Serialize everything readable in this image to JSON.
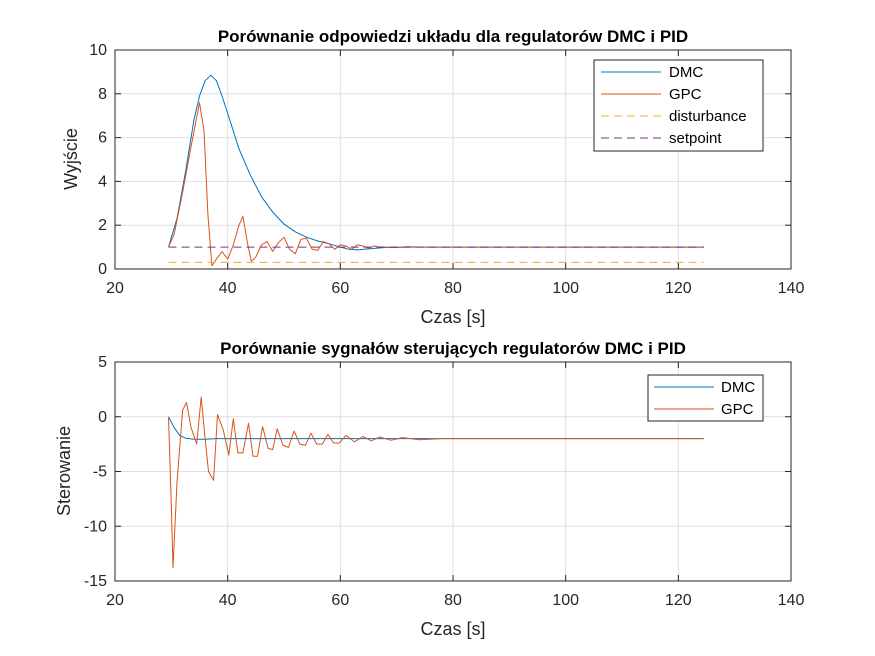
{
  "chart_data": [
    {
      "type": "line",
      "title": "Porównanie odpowiedzi układu dla regulatorów DMC i PID",
      "xlabel": "Czas [s]",
      "ylabel": "Wyjście",
      "xlim": [
        20,
        140
      ],
      "ylim": [
        0,
        10
      ],
      "xticks": [
        20,
        40,
        60,
        80,
        100,
        120,
        140
      ],
      "yticks": [
        0,
        2,
        4,
        6,
        8,
        10
      ],
      "xtick_labels": [
        "20",
        "40",
        "60",
        "80",
        "100",
        "120",
        "140"
      ],
      "ytick_labels": [
        "0",
        "2",
        "4",
        "6",
        "8",
        "10"
      ],
      "grid": true,
      "legend_position": "top-right",
      "series": [
        {
          "name": "DMC",
          "color": "#0072bd",
          "style": "solid",
          "x": [
            29.5,
            31,
            32.5,
            34,
            35,
            36,
            37,
            38,
            39,
            40,
            41,
            42,
            44,
            46,
            48,
            50,
            52,
            54,
            56,
            58,
            60,
            61.5,
            63,
            65,
            68,
            72,
            80,
            100,
            124.5
          ],
          "y": [
            1.0,
            2.3,
            4.4,
            6.8,
            7.9,
            8.6,
            8.85,
            8.6,
            7.9,
            7.1,
            6.3,
            5.5,
            4.3,
            3.3,
            2.6,
            2.05,
            1.7,
            1.45,
            1.28,
            1.15,
            1.0,
            0.9,
            0.87,
            0.92,
            0.98,
            1.0,
            1.0,
            1.0,
            1.0
          ]
        },
        {
          "name": "GPC",
          "color": "#d95319",
          "style": "solid",
          "x": [
            29.5,
            30.5,
            32,
            33.5,
            35,
            35.8,
            36.5,
            37.2,
            38,
            39,
            40,
            41,
            42,
            42.7,
            43.5,
            44.2,
            45,
            46,
            47,
            48,
            49,
            50,
            51,
            52,
            53,
            54,
            55,
            56,
            57,
            58,
            59,
            60,
            61,
            62,
            63,
            64,
            65,
            66,
            67,
            68,
            70,
            72,
            75,
            80,
            90,
            124.5
          ],
          "y": [
            1.0,
            1.6,
            3.5,
            5.6,
            7.6,
            6.3,
            2.5,
            0.15,
            0.45,
            0.8,
            0.45,
            1.1,
            2.0,
            2.4,
            1.2,
            0.35,
            0.55,
            1.1,
            1.25,
            0.8,
            1.2,
            1.45,
            0.9,
            0.7,
            1.35,
            1.4,
            0.9,
            0.85,
            1.25,
            1.15,
            0.9,
            1.1,
            1.05,
            0.9,
            1.1,
            1.05,
            0.95,
            1.05,
            1.0,
            1.0,
            0.98,
            1.02,
            1.0,
            1.0,
            1.0,
            1.0
          ]
        },
        {
          "name": "disturbance",
          "color": "#edb120",
          "style": "dashed",
          "x": [
            29.5,
            124.5
          ],
          "y": [
            0.3,
            0.3
          ]
        },
        {
          "name": "setpoint",
          "color": "#7e2f8e",
          "style": "dashed",
          "x": [
            29.5,
            124.5
          ],
          "y": [
            1.0,
            1.0
          ]
        }
      ]
    },
    {
      "type": "line",
      "title": "Porównanie sygnałów sterujących regulatorów DMC i PID",
      "xlabel": "Czas [s]",
      "ylabel": "Sterowanie",
      "xlim": [
        20,
        140
      ],
      "ylim": [
        -15,
        5
      ],
      "xticks": [
        20,
        40,
        60,
        80,
        100,
        120,
        140
      ],
      "yticks": [
        -15,
        -10,
        -5,
        0,
        5
      ],
      "xtick_labels": [
        "20",
        "40",
        "60",
        "80",
        "100",
        "120",
        "140"
      ],
      "ytick_labels": [
        "-15",
        "-10",
        "-5",
        "0",
        "5"
      ],
      "grid": true,
      "legend_position": "top-right",
      "series": [
        {
          "name": "DMC",
          "color": "#0072bd",
          "style": "solid",
          "x": [
            29.5,
            30.5,
            31.5,
            32.5,
            34,
            36,
            38,
            40,
            44,
            50,
            60,
            124.5
          ],
          "y": [
            0.0,
            -1.0,
            -1.7,
            -1.95,
            -2.05,
            -2.05,
            -2.0,
            -2.0,
            -2.0,
            -2.0,
            -2.0,
            -2.0
          ],
          "note": ""
        },
        {
          "name": "GPC",
          "color": "#d95319",
          "style": "solid",
          "x": [
            29.5,
            30,
            30.3,
            31,
            32,
            32.7,
            33.5,
            34.5,
            35.3,
            36,
            36.6,
            37.5,
            38.2,
            39.2,
            40.2,
            41,
            41.8,
            42.7,
            43.7,
            44.5,
            45.3,
            46.2,
            47.2,
            48,
            48.8,
            49.8,
            50.8,
            51.8,
            52.8,
            53.8,
            54.8,
            55.8,
            56.8,
            57.8,
            58.8,
            59.8,
            61,
            62.5,
            64,
            65.5,
            67,
            69,
            71,
            74,
            78,
            85,
            124.5
          ],
          "y": [
            0.0,
            -8.0,
            -13.8,
            -6.0,
            0.6,
            1.3,
            -1.0,
            -2.5,
            1.8,
            -2.0,
            -5.0,
            -5.8,
            0.2,
            -1.2,
            -3.5,
            -0.2,
            -3.3,
            -3.3,
            -0.6,
            -3.6,
            -3.6,
            -0.9,
            -2.9,
            -3.0,
            -1.1,
            -2.6,
            -2.8,
            -1.3,
            -2.5,
            -2.6,
            -1.5,
            -2.5,
            -2.5,
            -1.6,
            -2.4,
            -2.4,
            -1.7,
            -2.3,
            -1.8,
            -2.2,
            -1.85,
            -2.15,
            -1.9,
            -2.1,
            -2.0,
            -2.0,
            -2.0
          ]
        }
      ]
    }
  ]
}
